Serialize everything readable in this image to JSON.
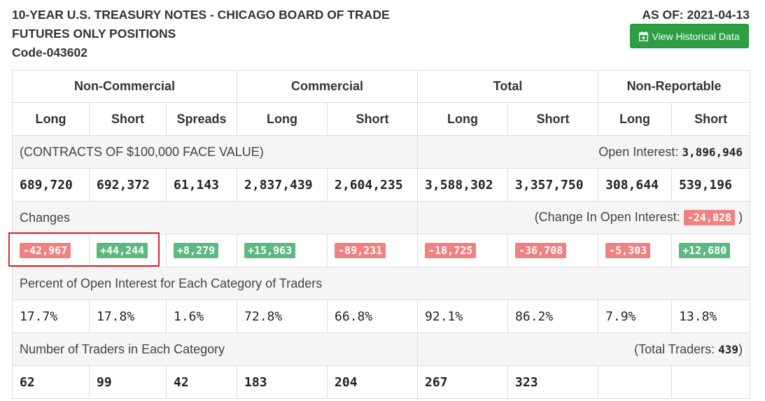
{
  "header": {
    "title_lines": [
      "10-YEAR U.S. TREASURY NOTES - CHICAGO BOARD OF TRADE",
      "FUTURES ONLY POSITIONS",
      "Code-043602"
    ],
    "as_of": "AS OF: 2021-04-13",
    "historical_button": "View Historical Data"
  },
  "table": {
    "groups": [
      "Non-Commercial",
      "Commercial",
      "Total",
      "Non-Reportable"
    ],
    "subheaders": [
      "Long",
      "Short",
      "Spreads",
      "Long",
      "Short",
      "Long",
      "Short",
      "Long",
      "Short"
    ],
    "contracts_label": "(CONTRACTS OF $100,000 FACE VALUE)",
    "open_interest_label": "Open Interest:",
    "open_interest_value": "3,896,946",
    "positions": [
      "689,720",
      "692,372",
      "61,143",
      "2,837,439",
      "2,604,235",
      "3,588,302",
      "3,357,750",
      "308,644",
      "539,196"
    ],
    "changes_label": "Changes",
    "change_oi_label": "(Change In Open Interest:",
    "change_oi_value": "-24,028",
    "change_oi_close": ")",
    "changes": [
      "-42,967",
      "+44,244",
      "+8,279",
      "+15,963",
      "-89,231",
      "-18,725",
      "-36,708",
      "-5,303",
      "+12,680"
    ],
    "percent_label": "Percent of Open Interest for Each Category of Traders",
    "percents": [
      "17.7%",
      "17.8%",
      "1.6%",
      "72.8%",
      "66.8%",
      "92.1%",
      "86.2%",
      "7.9%",
      "13.8%"
    ],
    "traders_label": "Number of Traders in Each Category",
    "total_traders_label": "(Total Traders:",
    "total_traders_value": "439",
    "total_traders_close": ")",
    "traders": [
      "62",
      "99",
      "42",
      "183",
      "204",
      "267",
      "323",
      "",
      ""
    ]
  },
  "colors": {
    "negative_badge": "#ef8181",
    "positive_badge": "#5cb97f",
    "button_green": "#2e9e44",
    "highlight_border": "#d9262e"
  }
}
